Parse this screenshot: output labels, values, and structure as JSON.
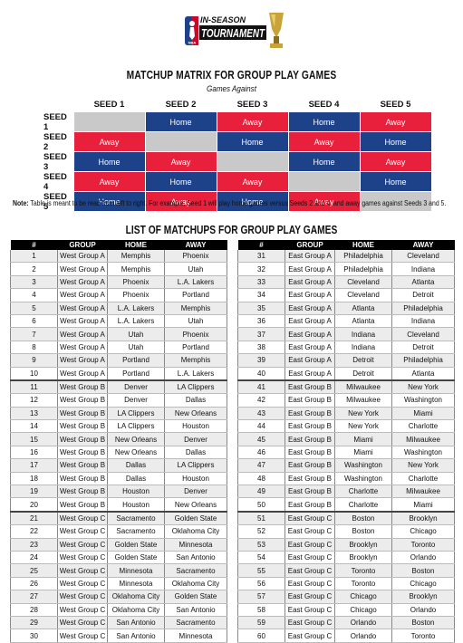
{
  "logo": {
    "line1": "IN-SEASON",
    "line2": "TOURNAMENT",
    "badge": "NBA"
  },
  "matrix": {
    "title": "MATCHUP MATRIX FOR GROUP PLAY GAMES",
    "subtitle": "Games Against",
    "columns": [
      "SEED 1",
      "SEED 2",
      "SEED 3",
      "SEED 4",
      "SEED 5"
    ],
    "rows": [
      {
        "label": "SEED 1",
        "cells": [
          "",
          "Home",
          "Away",
          "Home",
          "Away"
        ]
      },
      {
        "label": "SEED 2",
        "cells": [
          "Away",
          "",
          "Home",
          "Away",
          "Home"
        ]
      },
      {
        "label": "SEED 3",
        "cells": [
          "Home",
          "Away",
          "",
          "Home",
          "Away"
        ]
      },
      {
        "label": "SEED 4",
        "cells": [
          "Away",
          "Home",
          "Away",
          "",
          "Home"
        ]
      },
      {
        "label": "SEED 5",
        "cells": [
          "Home",
          "Away",
          "Home",
          "Away",
          ""
        ]
      }
    ],
    "colors": {
      "home": "#1d428a",
      "away": "#e8203b",
      "blank": "#c9c9c9"
    }
  },
  "note": {
    "label": "Note:",
    "text": "Table is meant to be read from left to right. For example, Seed 1 will play home games versus Seeds 2 and 4, and away games against Seeds 3 and 5."
  },
  "list": {
    "title": "LIST OF MATCHUPS FOR GROUP PLAY GAMES",
    "headers": [
      "#",
      "GROUP",
      "HOME",
      "AWAY"
    ],
    "left": [
      [
        "1",
        "West Group A",
        "Memphis",
        "Phoenix"
      ],
      [
        "2",
        "West Group A",
        "Memphis",
        "Utah"
      ],
      [
        "3",
        "West Group A",
        "Phoenix",
        "L.A. Lakers"
      ],
      [
        "4",
        "West Group A",
        "Phoenix",
        "Portland"
      ],
      [
        "5",
        "West Group A",
        "L.A. Lakers",
        "Memphis"
      ],
      [
        "6",
        "West Group A",
        "L.A. Lakers",
        "Utah"
      ],
      [
        "7",
        "West Group A",
        "Utah",
        "Phoenix"
      ],
      [
        "8",
        "West Group A",
        "Utah",
        "Portland"
      ],
      [
        "9",
        "West Group A",
        "Portland",
        "Memphis"
      ],
      [
        "10",
        "West Group A",
        "Portland",
        "L.A. Lakers"
      ],
      [
        "11",
        "West Group B",
        "Denver",
        "LA Clippers"
      ],
      [
        "12",
        "West Group B",
        "Denver",
        "Dallas"
      ],
      [
        "13",
        "West Group B",
        "LA Clippers",
        "New Orleans"
      ],
      [
        "14",
        "West Group B",
        "LA Clippers",
        "Houston"
      ],
      [
        "15",
        "West Group B",
        "New Orleans",
        "Denver"
      ],
      [
        "16",
        "West Group B",
        "New Orleans",
        "Dallas"
      ],
      [
        "17",
        "West Group B",
        "Dallas",
        "LA Clippers"
      ],
      [
        "18",
        "West Group B",
        "Dallas",
        "Houston"
      ],
      [
        "19",
        "West Group B",
        "Houston",
        "Denver"
      ],
      [
        "20",
        "West Group B",
        "Houston",
        "New Orleans"
      ],
      [
        "21",
        "West Group C",
        "Sacramento",
        "Golden State"
      ],
      [
        "22",
        "West Group C",
        "Sacramento",
        "Oklahoma City"
      ],
      [
        "23",
        "West Group C",
        "Golden State",
        "Minnesota"
      ],
      [
        "24",
        "West Group C",
        "Golden State",
        "San Antonio"
      ],
      [
        "25",
        "West Group C",
        "Minnesota",
        "Sacramento"
      ],
      [
        "26",
        "West Group C",
        "Minnesota",
        "Oklahoma City"
      ],
      [
        "27",
        "West Group C",
        "Oklahoma City",
        "Golden State"
      ],
      [
        "28",
        "West Group C",
        "Oklahoma City",
        "San Antonio"
      ],
      [
        "29",
        "West Group C",
        "San Antonio",
        "Sacramento"
      ],
      [
        "30",
        "West Group C",
        "San Antonio",
        "Minnesota"
      ]
    ],
    "right": [
      [
        "31",
        "East Group A",
        "Philadelphia",
        "Cleveland"
      ],
      [
        "32",
        "East Group A",
        "Philadelphia",
        "Indiana"
      ],
      [
        "33",
        "East Group A",
        "Cleveland",
        "Atlanta"
      ],
      [
        "34",
        "East Group A",
        "Cleveland",
        "Detroit"
      ],
      [
        "35",
        "East Group A",
        "Atlanta",
        "Philadelphia"
      ],
      [
        "36",
        "East Group A",
        "Atlanta",
        "Indiana"
      ],
      [
        "37",
        "East Group A",
        "Indiana",
        "Cleveland"
      ],
      [
        "38",
        "East Group A",
        "Indiana",
        "Detroit"
      ],
      [
        "39",
        "East Group A",
        "Detroit",
        "Philadelphia"
      ],
      [
        "40",
        "East Group A",
        "Detroit",
        "Atlanta"
      ],
      [
        "41",
        "East Group B",
        "Milwaukee",
        "New York"
      ],
      [
        "42",
        "East Group B",
        "Milwaukee",
        "Washington"
      ],
      [
        "43",
        "East Group B",
        "New York",
        "Miami"
      ],
      [
        "44",
        "East Group B",
        "New York",
        "Charlotte"
      ],
      [
        "45",
        "East Group B",
        "Miami",
        "Milwaukee"
      ],
      [
        "46",
        "East Group B",
        "Miami",
        "Washington"
      ],
      [
        "47",
        "East Group B",
        "Washington",
        "New York"
      ],
      [
        "48",
        "East Group B",
        "Washington",
        "Charlotte"
      ],
      [
        "49",
        "East Group B",
        "Charlotte",
        "Milwaukee"
      ],
      [
        "50",
        "East Group B",
        "Charlotte",
        "Miami"
      ],
      [
        "51",
        "East Group C",
        "Boston",
        "Brooklyn"
      ],
      [
        "52",
        "East Group C",
        "Boston",
        "Chicago"
      ],
      [
        "53",
        "East Group C",
        "Brooklyn",
        "Toronto"
      ],
      [
        "54",
        "East Group C",
        "Brooklyn",
        "Orlando"
      ],
      [
        "55",
        "East Group C",
        "Toronto",
        "Boston"
      ],
      [
        "56",
        "East Group C",
        "Toronto",
        "Chicago"
      ],
      [
        "57",
        "East Group C",
        "Chicago",
        "Brooklyn"
      ],
      [
        "58",
        "East Group C",
        "Chicago",
        "Orlando"
      ],
      [
        "59",
        "East Group C",
        "Orlando",
        "Boston"
      ],
      [
        "60",
        "East Group C",
        "Orlando",
        "Toronto"
      ]
    ]
  }
}
